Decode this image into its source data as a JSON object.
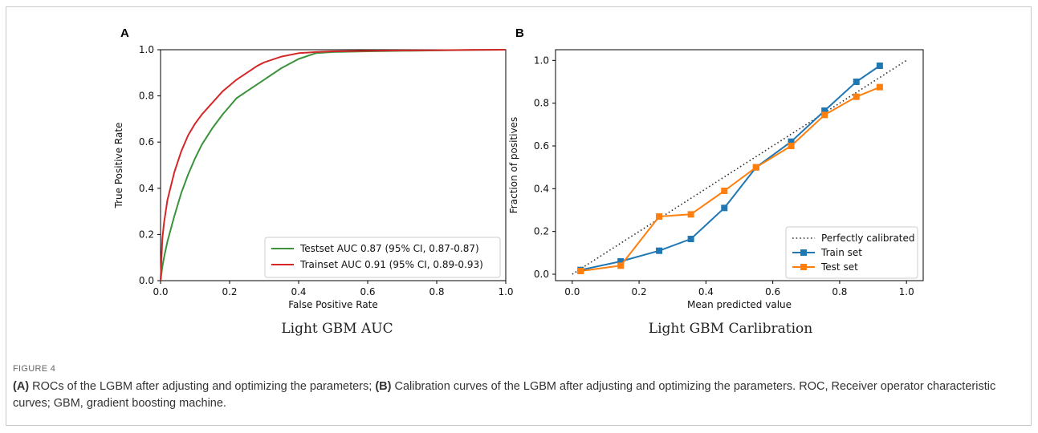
{
  "figure_label": "FIGURE 4",
  "caption": {
    "a_tag": "(A)",
    "a_text": " ROCs of the LGBM after adjusting and optimizing the parameters; ",
    "b_tag": "(B)",
    "b_text": " Calibration curves of the LGBM after adjusting and optimizing the parameters. ROC, Receiver operator characteristic curves; GBM, gradient boosting machine."
  },
  "panels": {
    "a": {
      "letter": "A",
      "caption": "Light GBM AUC"
    },
    "b": {
      "letter": "B",
      "caption": "Light GBM Carlibration"
    }
  },
  "chart_data": [
    {
      "type": "line",
      "panel": "A",
      "xlabel": "False Positive Rate",
      "ylabel": "True Positive Rate",
      "xlim": [
        0,
        1
      ],
      "ylim": [
        0,
        1
      ],
      "xticks": [
        0.0,
        0.2,
        0.4,
        0.6,
        0.8,
        1.0
      ],
      "yticks": [
        0.0,
        0.2,
        0.4,
        0.6,
        0.8,
        1.0
      ],
      "tick_labels": [
        "0.0",
        "0.2",
        "0.4",
        "0.6",
        "0.8",
        "1.0"
      ],
      "grid": false,
      "legend_position": "lower-right",
      "series": [
        {
          "name": "Testset AUC 0.87 (95% CI, 0.87-0.87)",
          "color": "#3a923a",
          "x": [
            0,
            0.005,
            0.01,
            0.02,
            0.04,
            0.06,
            0.08,
            0.1,
            0.12,
            0.15,
            0.18,
            0.2,
            0.22,
            0.25,
            0.3,
            0.35,
            0.4,
            0.45,
            0.5,
            0.6,
            0.7,
            0.8,
            0.9,
            1.0
          ],
          "y": [
            0,
            0.06,
            0.1,
            0.17,
            0.28,
            0.38,
            0.46,
            0.53,
            0.59,
            0.66,
            0.72,
            0.755,
            0.79,
            0.82,
            0.87,
            0.92,
            0.96,
            0.985,
            0.99,
            0.993,
            0.995,
            0.997,
            0.999,
            1.0
          ]
        },
        {
          "name": "Trainset AUC 0.91 (95% CI, 0.89-0.93)",
          "color": "#d62728",
          "x": [
            0,
            0.005,
            0.01,
            0.02,
            0.04,
            0.06,
            0.08,
            0.1,
            0.12,
            0.15,
            0.18,
            0.2,
            0.22,
            0.25,
            0.28,
            0.3,
            0.35,
            0.4,
            0.45,
            0.5,
            0.6,
            0.7,
            0.8,
            0.9,
            1.0
          ],
          "y": [
            0,
            0.18,
            0.25,
            0.35,
            0.47,
            0.56,
            0.63,
            0.68,
            0.72,
            0.77,
            0.82,
            0.845,
            0.87,
            0.9,
            0.93,
            0.945,
            0.97,
            0.985,
            0.99,
            0.993,
            0.995,
            0.997,
            0.998,
            0.999,
            1.0
          ]
        }
      ]
    },
    {
      "type": "line",
      "panel": "B",
      "xlabel": "Mean predicted value",
      "ylabel": "Fraction of positives",
      "xlim": [
        -0.05,
        1.05
      ],
      "ylim": [
        -0.03,
        1.05
      ],
      "xticks": [
        0.0,
        0.2,
        0.4,
        0.6,
        0.8,
        1.0
      ],
      "yticks": [
        0.0,
        0.2,
        0.4,
        0.6,
        0.8,
        1.0
      ],
      "tick_labels": [
        "0.0",
        "0.2",
        "0.4",
        "0.6",
        "0.8",
        "1.0"
      ],
      "grid": false,
      "legend_position": "lower-right",
      "series": [
        {
          "name": "Perfectly calibrated",
          "color": "#333333",
          "style": "dotted",
          "x": [
            0,
            1
          ],
          "y": [
            0,
            1
          ]
        },
        {
          "name": "Train set",
          "color": "#1f77b4",
          "marker": "square",
          "x": [
            0.025,
            0.145,
            0.26,
            0.355,
            0.455,
            0.55,
            0.655,
            0.755,
            0.85,
            0.92
          ],
          "y": [
            0.02,
            0.06,
            0.11,
            0.165,
            0.31,
            0.5,
            0.62,
            0.765,
            0.9,
            0.975
          ]
        },
        {
          "name": "Test set",
          "color": "#ff7f0e",
          "marker": "square",
          "x": [
            0.025,
            0.145,
            0.26,
            0.355,
            0.455,
            0.55,
            0.655,
            0.755,
            0.85,
            0.92
          ],
          "y": [
            0.015,
            0.04,
            0.27,
            0.28,
            0.39,
            0.5,
            0.6,
            0.745,
            0.83,
            0.875
          ]
        }
      ]
    }
  ]
}
